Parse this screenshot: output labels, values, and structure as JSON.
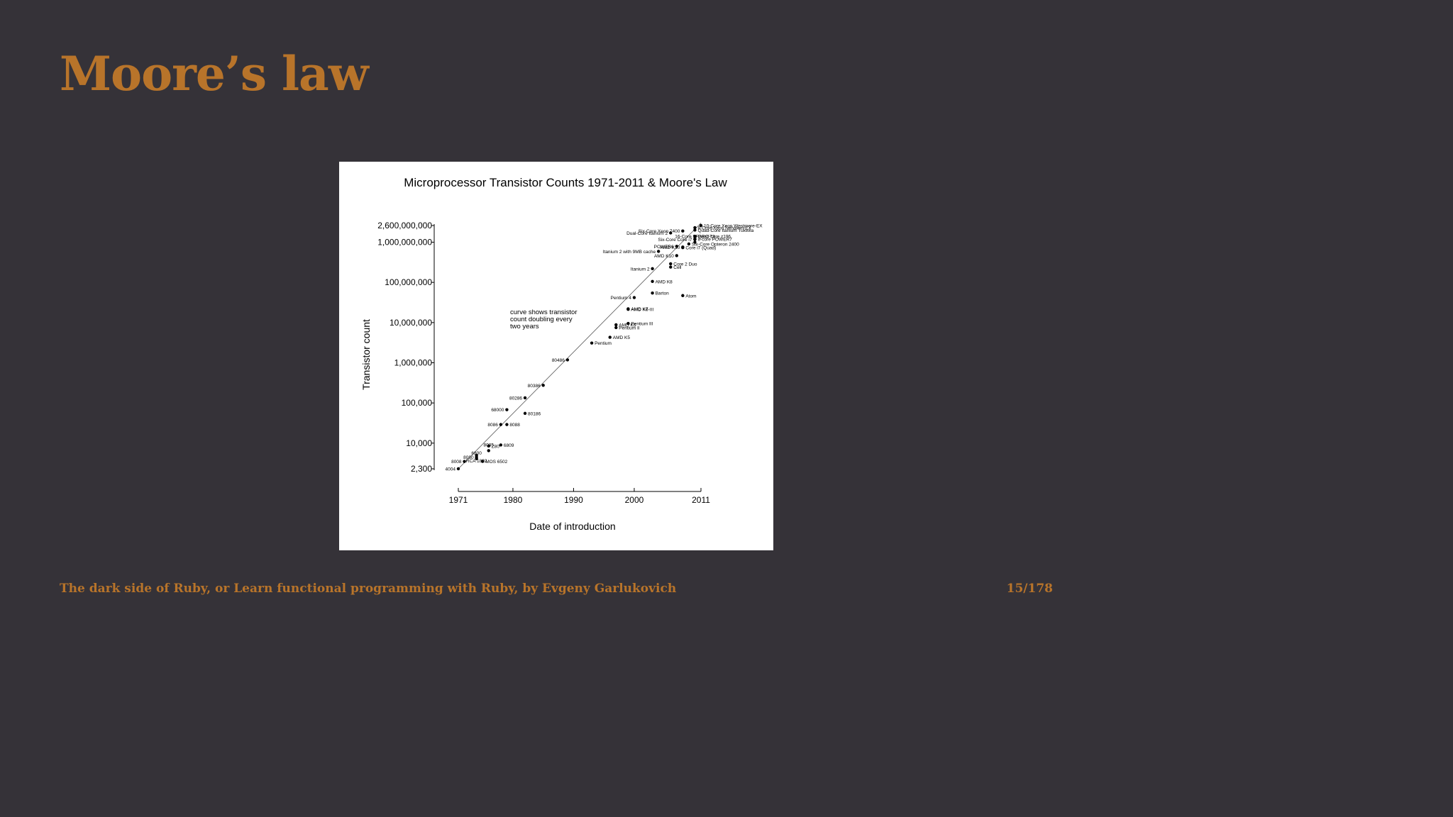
{
  "slide": {
    "title": "Moore’s law",
    "footer": "The dark side of Ruby, or Learn functional programming with Ruby, by Evgeny Garlukovich",
    "page": "15/178"
  },
  "colors": {
    "background": "#353238",
    "accent": "#b8742a",
    "figure_bg": "#ffffff"
  },
  "chart_data": {
    "type": "scatter",
    "title": "Microprocessor Transistor Counts 1971-2011 & Moore's Law",
    "xlabel": "Date of introduction",
    "ylabel": "Transistor count",
    "y_scale": "log",
    "xlim": [
      1971,
      2011
    ],
    "ylim": [
      2300,
      2600000000
    ],
    "x_ticks": [
      1971,
      1980,
      1990,
      2000,
      2011
    ],
    "y_ticks": [
      {
        "value": 2300,
        "label": "2,300"
      },
      {
        "value": 10000,
        "label": "10,000"
      },
      {
        "value": 100000,
        "label": "100,000"
      },
      {
        "value": 1000000,
        "label": "1,000,000"
      },
      {
        "value": 10000000,
        "label": "10,000,000"
      },
      {
        "value": 100000000,
        "label": "100,000,000"
      },
      {
        "value": 1000000000,
        "label": "1,000,000,000"
      },
      {
        "value": 2600000000,
        "label": "2,600,000,000"
      }
    ],
    "trend_line": {
      "from": [
        1971,
        2300
      ],
      "to": [
        2011,
        3000000000
      ]
    },
    "annotation": [
      "curve shows transistor",
      "count doubling every",
      "two years"
    ],
    "points": [
      {
        "name": "4004",
        "x": 1971,
        "y": 2300,
        "side": "left"
      },
      {
        "name": "8008",
        "x": 1972,
        "y": 3500,
        "side": "left"
      },
      {
        "name": "RCA 1802",
        "x": 1974,
        "y": 5000,
        "side": "below"
      },
      {
        "name": "8080",
        "x": 1974,
        "y": 4500,
        "side": "left"
      },
      {
        "name": "6800",
        "x": 1974,
        "y": 4100,
        "side": "above"
      },
      {
        "name": "MOS 6502",
        "x": 1975,
        "y": 3510,
        "side": "right"
      },
      {
        "name": "8085",
        "x": 1976,
        "y": 6500,
        "side": "above"
      },
      {
        "name": "Z80",
        "x": 1976,
        "y": 8500,
        "side": "right"
      },
      {
        "name": "6809",
        "x": 1978,
        "y": 9000,
        "side": "right"
      },
      {
        "name": "8086",
        "x": 1978,
        "y": 29000,
        "side": "left"
      },
      {
        "name": "8088",
        "x": 1979,
        "y": 29000,
        "side": "right"
      },
      {
        "name": "68000",
        "x": 1979,
        "y": 68000,
        "side": "left"
      },
      {
        "name": "80186",
        "x": 1982,
        "y": 55000,
        "side": "right"
      },
      {
        "name": "80286",
        "x": 1982,
        "y": 134000,
        "side": "left"
      },
      {
        "name": "80386",
        "x": 1985,
        "y": 275000,
        "side": "left"
      },
      {
        "name": "80486",
        "x": 1989,
        "y": 1180000,
        "side": "left"
      },
      {
        "name": "Pentium",
        "x": 1993,
        "y": 3100000,
        "side": "right"
      },
      {
        "name": "AMD K5",
        "x": 1996,
        "y": 4300000,
        "side": "right"
      },
      {
        "name": "Pentium II",
        "x": 1997,
        "y": 7500000,
        "side": "right"
      },
      {
        "name": "AMD K6",
        "x": 1997,
        "y": 8800000,
        "side": "right"
      },
      {
        "name": "Pentium III",
        "x": 1999,
        "y": 9500000,
        "side": "right"
      },
      {
        "name": "AMD K6-III",
        "x": 1999,
        "y": 21300000,
        "side": "right"
      },
      {
        "name": "AMD K7",
        "x": 1999,
        "y": 22000000,
        "side": "right"
      },
      {
        "name": "Pentium 4",
        "x": 2000,
        "y": 42000000,
        "side": "left"
      },
      {
        "name": "Barton",
        "x": 2003,
        "y": 54300000,
        "side": "right"
      },
      {
        "name": "AMD K8",
        "x": 2003,
        "y": 105900000,
        "side": "right"
      },
      {
        "name": "Itanium 2",
        "x": 2003,
        "y": 220000000,
        "side": "left"
      },
      {
        "name": "Atom",
        "x": 2008,
        "y": 47000000,
        "side": "right"
      },
      {
        "name": "Cell",
        "x": 2006,
        "y": 241000000,
        "side": "right"
      },
      {
        "name": "Core 2 Duo",
        "x": 2006,
        "y": 291000000,
        "side": "right"
      },
      {
        "name": "AMD K10",
        "x": 2007,
        "y": 463000000,
        "side": "left"
      },
      {
        "name": "Core i7 (Quad)",
        "x": 2008,
        "y": 731000000,
        "side": "right"
      },
      {
        "name": "Itanium 2 with 9MB cache",
        "x": 2004,
        "y": 592000000,
        "side": "left"
      },
      {
        "name": "POWER6",
        "x": 2007,
        "y": 789000000,
        "side": "left"
      },
      {
        "name": "AMD K10",
        "x": 2008,
        "y": 758000000,
        "side": "left"
      },
      {
        "name": "Six-Core Opteron 2400",
        "x": 2009,
        "y": 904000000,
        "side": "right"
      },
      {
        "name": "Dual-Core Itanium 2",
        "x": 2006,
        "y": 1700000000,
        "side": "left"
      },
      {
        "name": "Six-Core Xeon 7400",
        "x": 2008,
        "y": 1900000000,
        "side": "left"
      },
      {
        "name": "8-Core Xeon Nehalem-EX",
        "x": 2010,
        "y": 2300000000,
        "side": "right"
      },
      {
        "name": "Quad-Core Itanium Tukwila",
        "x": 2010,
        "y": 2000000000,
        "side": "right"
      },
      {
        "name": "Quad-core z196",
        "x": 2010,
        "y": 1400000000,
        "side": "right"
      },
      {
        "name": "8-core POWER7",
        "x": 2010,
        "y": 1200000000,
        "side": "right"
      },
      {
        "name": "Six-Core Core i7",
        "x": 2010,
        "y": 1170000000,
        "side": "left"
      },
      {
        "name": "16-Core SPARC T3",
        "x": 2010,
        "y": 1000000000,
        "side": "above"
      },
      {
        "name": "10-Core Xeon Westmere-EX",
        "x": 2011,
        "y": 2600000000,
        "side": "right"
      }
    ]
  }
}
